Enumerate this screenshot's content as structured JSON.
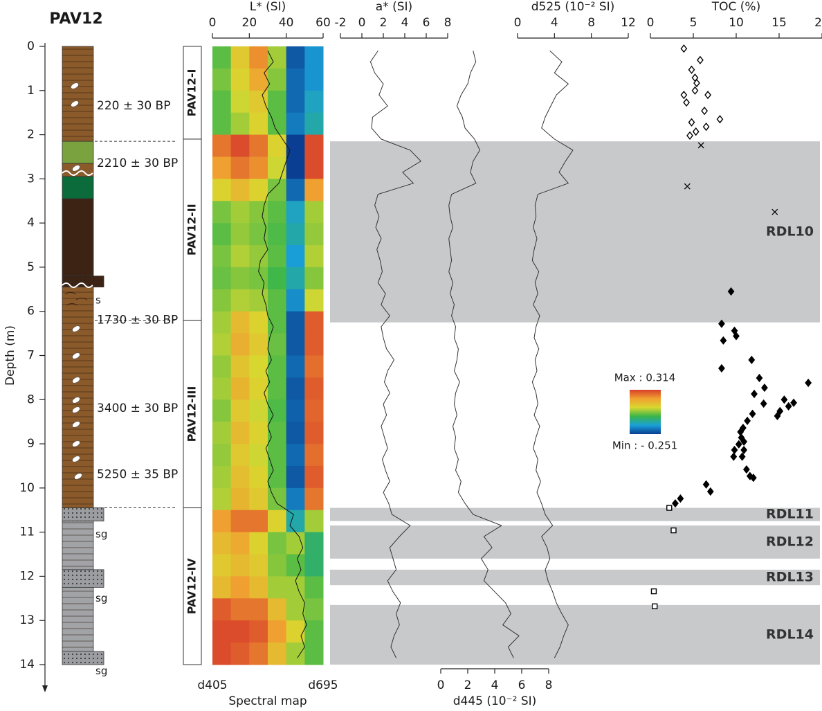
{
  "title": "PAV12",
  "depth_axis": {
    "label": "Depth (m)",
    "ylim": [
      0,
      14
    ],
    "yticks": [
      0,
      1,
      2,
      3,
      4,
      5,
      6,
      7,
      8,
      9,
      10,
      11,
      12,
      13,
      14
    ]
  },
  "depth": [
    0.1,
    0.35,
    0.6,
    0.85,
    1.1,
    1.35,
    1.6,
    1.85,
    2.1,
    2.35,
    2.6,
    2.85,
    3.1,
    3.35,
    3.6,
    3.85,
    4.1,
    4.35,
    4.6,
    4.85,
    5.1,
    5.35,
    5.6,
    5.85,
    6.1,
    6.35,
    6.6,
    6.85,
    7.1,
    7.35,
    7.6,
    7.85,
    8.1,
    8.35,
    8.6,
    8.85,
    9.1,
    9.35,
    9.6,
    9.85,
    10.1,
    10.35,
    10.6,
    10.85,
    11.1,
    11.35,
    11.6,
    11.85,
    12.1,
    12.35,
    12.6,
    12.85,
    13.1,
    13.35,
    13.6,
    13.85
  ],
  "lithology": {
    "layers": [
      {
        "top": 0,
        "bottom": 2.15,
        "color": "#8b5a2b",
        "pattern": "laminated"
      },
      {
        "top": 2.15,
        "bottom": 2.65,
        "color": "#7aa23f",
        "pattern": null
      },
      {
        "top": 2.65,
        "bottom": 2.95,
        "color": "#8b5a2b",
        "pattern": null
      },
      {
        "top": 2.95,
        "bottom": 3.45,
        "color": "#0c6b3a",
        "pattern": null
      },
      {
        "top": 3.45,
        "bottom": 5.2,
        "color": "#3d2314",
        "pattern": null
      },
      {
        "top": 5.2,
        "bottom": 5.45,
        "color": "#3d2314",
        "pattern": "sand"
      },
      {
        "top": 5.45,
        "bottom": 10.45,
        "color": "#8b5a2b",
        "pattern": "laminated"
      },
      {
        "top": 10.45,
        "bottom": 10.75,
        "color": "#9c9da1",
        "pattern": "sand"
      },
      {
        "top": 10.75,
        "bottom": 11.85,
        "color": "#a2a3a7",
        "pattern": "laminated"
      },
      {
        "top": 11.85,
        "bottom": 12.25,
        "color": "#9c9da1",
        "pattern": "sand"
      },
      {
        "top": 12.25,
        "bottom": 13.7,
        "color": "#a2a3a7",
        "pattern": "laminated"
      },
      {
        "top": 13.7,
        "bottom": 14,
        "color": "#9c9da1",
        "pattern": "sand"
      }
    ],
    "dates": [
      {
        "label": "220 ± 30 BP",
        "depth": 1.35
      },
      {
        "label": "2210 ± 30 BP",
        "depth": 2.65
      },
      {
        "label": "1730 ± 30 BP",
        "depth": 6.2
      },
      {
        "label": "3400 ± 30 BP",
        "depth": 8.2
      },
      {
        "label": "5250 ± 35 BP",
        "depth": 9.7
      }
    ],
    "boundaries": [
      2.15,
      6.2,
      10.45
    ],
    "grain_labels": [
      {
        "label": "s",
        "depth": 5.75
      },
      {
        "label": "sg",
        "depth": 11.05
      },
      {
        "label": "sg",
        "depth": 12.5
      },
      {
        "label": "sg",
        "depth": 14.15
      }
    ]
  },
  "units": [
    {
      "label": "PAV12-I",
      "top": 0,
      "bottom": 2.1
    },
    {
      "label": "PAV12-II",
      "top": 2.1,
      "bottom": 6.2
    },
    {
      "label": "PAV12-III",
      "top": 6.2,
      "bottom": 10.45
    },
    {
      "label": "PAV12-IV",
      "top": 10.45,
      "bottom": 14
    }
  ],
  "events": [
    {
      "label": "RDL10",
      "top": 2.15,
      "bottom": 6.25
    },
    {
      "label": "RDL11",
      "top": 10.45,
      "bottom": 10.75
    },
    {
      "label": "RDL12",
      "top": 10.85,
      "bottom": 11.6
    },
    {
      "label": "RDL13",
      "top": 11.85,
      "bottom": 12.2
    },
    {
      "label": "RDL14",
      "top": 12.65,
      "bottom": 14
    }
  ],
  "chart_data": [
    {
      "type": "heatmap",
      "xlabel": "L* (SI)",
      "axis_side": "top",
      "xlim": [
        0,
        60
      ],
      "xticks": [
        0,
        20,
        40,
        60
      ],
      "bottom_labels": [
        "d405",
        "d695"
      ],
      "bottom_title": "Spectral map",
      "colorscale": [
        "#0a3d91",
        "#1aa0d8",
        "#39b54a",
        "#d8d830",
        "#f0a030",
        "#d7402a"
      ],
      "zlim": [
        -0.251,
        0.314
      ],
      "zticks": [
        {
          "value": -0.251,
          "label": "Min : - 0.251"
        },
        {
          "value": 0.314,
          "label": "Max : 0.314"
        }
      ],
      "row_edges": [
        0,
        0.5,
        1,
        1.5,
        2,
        2.5,
        3,
        3.5,
        4,
        4.5,
        5,
        5.5,
        6,
        6.5,
        7,
        7.5,
        8,
        8.5,
        9,
        9.5,
        10,
        10.5,
        11,
        11.5,
        12,
        12.5,
        13,
        13.5,
        14
      ],
      "rows": [
        [
          0.0,
          0.12,
          0.22,
          0.05,
          -0.22,
          -0.15
        ],
        [
          0.02,
          0.1,
          0.18,
          0.03,
          -0.2,
          -0.15
        ],
        [
          0.0,
          0.08,
          0.12,
          0.0,
          -0.2,
          -0.12
        ],
        [
          0.0,
          0.05,
          0.1,
          0.0,
          -0.18,
          -0.1
        ],
        [
          0.25,
          0.3,
          0.25,
          0.1,
          -0.25,
          0.3
        ],
        [
          0.2,
          0.25,
          0.22,
          0.08,
          -0.25,
          0.3
        ],
        [
          0.1,
          0.15,
          0.1,
          0.02,
          -0.2,
          0.2
        ],
        [
          0.02,
          0.05,
          0.03,
          0.0,
          -0.12,
          0.05
        ],
        [
          0.0,
          0.04,
          0.02,
          -0.01,
          -0.1,
          0.04
        ],
        [
          0.02,
          0.06,
          0.04,
          0.0,
          -0.14,
          0.06
        ],
        [
          0.01,
          0.03,
          0.02,
          -0.02,
          -0.1,
          0.03
        ],
        [
          0.03,
          0.06,
          0.05,
          0.0,
          -0.16,
          0.08
        ],
        [
          0.05,
          0.15,
          0.1,
          0.0,
          -0.22,
          0.28
        ],
        [
          0.06,
          0.17,
          0.12,
          0.01,
          -0.22,
          0.28
        ],
        [
          0.04,
          0.13,
          0.09,
          0.0,
          -0.2,
          0.26
        ],
        [
          0.05,
          0.16,
          0.1,
          0.0,
          -0.22,
          0.28
        ],
        [
          0.03,
          0.12,
          0.08,
          -0.01,
          -0.21,
          0.27
        ],
        [
          0.05,
          0.15,
          0.1,
          0.0,
          -0.22,
          0.28
        ],
        [
          0.04,
          0.12,
          0.08,
          0.0,
          -0.2,
          0.26
        ],
        [
          0.05,
          0.14,
          0.1,
          0.0,
          -0.22,
          0.28
        ],
        [
          0.06,
          0.16,
          0.12,
          0.02,
          -0.18,
          0.25
        ],
        [
          0.2,
          0.25,
          0.25,
          0.1,
          -0.1,
          0.05
        ],
        [
          0.15,
          0.18,
          0.1,
          0.02,
          0.05,
          -0.05
        ],
        [
          0.12,
          0.15,
          0.12,
          0.03,
          0.0,
          -0.05
        ],
        [
          0.15,
          0.2,
          0.15,
          0.05,
          0.05,
          0.0
        ],
        [
          0.28,
          0.25,
          0.25,
          0.15,
          0.05,
          0.02
        ],
        [
          0.3,
          0.3,
          0.28,
          0.2,
          0.1,
          0.0
        ],
        [
          0.3,
          0.28,
          0.25,
          0.15,
          0.05,
          0.0
        ]
      ],
      "color": "#111111",
      "values": [
        30,
        33,
        28,
        31,
        27,
        29,
        32,
        34,
        38,
        42,
        40,
        38,
        36,
        30,
        28,
        27,
        29,
        28,
        30,
        26,
        25,
        28,
        27,
        29,
        30,
        33,
        31,
        30,
        32,
        29,
        31,
        28,
        30,
        33,
        30,
        32,
        29,
        31,
        33,
        30,
        32,
        35,
        44,
        42,
        47,
        49,
        46,
        48,
        45,
        47,
        50,
        49,
        51,
        48,
        50,
        46
      ]
    },
    {
      "type": "line",
      "xlabel": "a* (SI)",
      "axis_side": "top",
      "xlim": [
        -2,
        8
      ],
      "xticks": [
        -2,
        0,
        2,
        4,
        6,
        8
      ],
      "color": "#333333",
      "values": [
        1.5,
        0.8,
        1.2,
        2.0,
        1.6,
        2.4,
        1.0,
        0.9,
        1.8,
        4.5,
        5.5,
        3.8,
        4.8,
        1.5,
        1.2,
        1.6,
        1.3,
        1.8,
        1.4,
        1.7,
        1.9,
        1.5,
        2.2,
        1.8,
        2.6,
        1.8,
        2.0,
        2.3,
        3.0,
        2.4,
        2.1,
        2.6,
        2.0,
        2.3,
        1.8,
        2.1,
        2.4,
        1.9,
        2.2,
        2.6,
        2.0,
        2.5,
        2.8,
        4.5,
        3.5,
        2.6,
        2.9,
        3.2,
        2.4,
        2.9,
        3.6,
        3.2,
        3.5,
        3.0,
        2.7,
        3.2
      ]
    },
    {
      "type": "line",
      "xlabel": "d445 (10⁻² SI)",
      "axis_side": "bottom",
      "xlim": [
        0,
        8
      ],
      "xticks": [
        0,
        2,
        4,
        6,
        8
      ],
      "color": "#333333",
      "values": [
        2.4,
        2.6,
        2.2,
        2.0,
        1.5,
        1.2,
        1.6,
        1.8,
        2.5,
        2.9,
        2.4,
        2.2,
        2.6,
        0.8,
        0.6,
        0.7,
        0.9,
        0.6,
        0.7,
        0.8,
        0.6,
        0.9,
        0.7,
        1.0,
        0.8,
        1.1,
        1.0,
        1.3,
        1.2,
        1.0,
        1.4,
        1.1,
        1.0,
        1.2,
        0.9,
        1.1,
        1.0,
        1.3,
        1.1,
        1.5,
        1.3,
        1.8,
        2.4,
        4.5,
        3.2,
        3.8,
        3.0,
        3.5,
        3.2,
        4.0,
        4.8,
        5.2,
        4.6,
        5.8,
        5.0,
        5.4
      ]
    },
    {
      "type": "line",
      "xlabel": "d525 (10⁻² SI)",
      "axis_side": "top",
      "xlim": [
        0,
        12
      ],
      "xticks": [
        0,
        4,
        8,
        12
      ],
      "color": "#333333",
      "values": [
        3.5,
        4.8,
        4.0,
        5.5,
        4.2,
        3.6,
        3.0,
        2.6,
        4.0,
        6.0,
        5.2,
        4.5,
        5.5,
        2.2,
        1.9,
        2.0,
        1.7,
        2.1,
        1.8,
        1.6,
        2.3,
        1.9,
        2.2,
        1.7,
        2.4,
        2.0,
        1.8,
        2.3,
        1.9,
        2.1,
        1.6,
        2.0,
        2.2,
        1.8,
        2.4,
        2.0,
        1.7,
        2.2,
        2.0,
        2.5,
        2.1,
        2.6,
        3.0,
        3.8,
        2.6,
        3.2,
        3.5,
        3.0,
        3.3,
        3.8,
        4.2,
        4.8,
        5.5,
        5.0,
        4.6,
        4.0
      ]
    },
    {
      "type": "scatter",
      "xlabel": "TOC (%)",
      "axis_side": "top",
      "xlim": [
        0,
        20
      ],
      "xticks": [
        0,
        5,
        10,
        15,
        20
      ],
      "color": "#000000",
      "series": [
        {
          "marker": "open-diamond",
          "depth": [
            0.05,
            0.31,
            0.53,
            0.71,
            0.83,
            1.0,
            1.1,
            1.1,
            1.27,
            1.46,
            1.65,
            1.72,
            1.82,
            1.93,
            2.02
          ],
          "values": [
            3.9,
            5.8,
            4.8,
            5.2,
            5.4,
            5.2,
            3.9,
            6.7,
            4.2,
            6.3,
            8.1,
            4.8,
            6.5,
            5.3,
            4.6
          ]
        },
        {
          "marker": "cross",
          "depth": [
            2.24,
            3.17,
            3.75
          ],
          "values": [
            5.9,
            4.3,
            14.5
          ]
        },
        {
          "marker": "filled-diamond",
          "depth": [
            5.55,
            6.28,
            6.44,
            6.56,
            6.66,
            7.1,
            7.29,
            7.51,
            7.62,
            7.73,
            7.87,
            8.0,
            8.07,
            8.09,
            8.15,
            8.26,
            8.32,
            8.37,
            8.48,
            8.64,
            8.73,
            8.86,
            8.95,
            9.01,
            9.14,
            9.14,
            9.29,
            9.29,
            9.58,
            9.73,
            9.77,
            9.92,
            10.08,
            10.24,
            10.35
          ],
          "values": [
            9.4,
            8.3,
            9.8,
            10.0,
            8.5,
            11.8,
            8.3,
            12.7,
            18.4,
            13.3,
            12.1,
            15.6,
            16.7,
            13.2,
            16.1,
            15.1,
            11.9,
            14.8,
            11.3,
            10.8,
            10.5,
            10.6,
            10.9,
            10.3,
            10.9,
            9.8,
            10.7,
            9.7,
            11.2,
            11.6,
            12.0,
            6.5,
            7.0,
            3.5,
            2.9
          ]
        },
        {
          "marker": "open-square",
          "depth": [
            10.45,
            10.96,
            12.34,
            12.68
          ],
          "values": [
            2.2,
            2.7,
            0.4,
            0.5
          ]
        }
      ]
    }
  ]
}
